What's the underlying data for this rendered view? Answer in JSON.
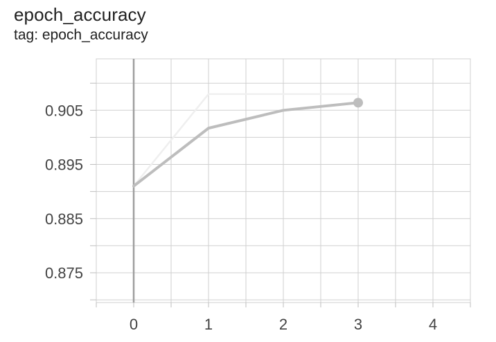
{
  "chart_data": {
    "type": "line",
    "title": "epoch_accuracy",
    "subtitle": "tag: epoch_accuracy",
    "xlim": [
      -0.5,
      4.5
    ],
    "ylim": [
      0.8695,
      0.9145
    ],
    "x_ticks": [
      0,
      1,
      2,
      3,
      4
    ],
    "y_ticks": [
      0.875,
      0.885,
      0.895,
      0.905
    ],
    "y_tick_labels": [
      "0.875",
      "0.885",
      "0.895",
      "0.905"
    ],
    "grid": true,
    "series": [
      {
        "role": "raw",
        "color": "#efefef",
        "x": [
          0,
          1,
          2,
          3
        ],
        "y": [
          0.891,
          0.908,
          0.908,
          0.908
        ]
      },
      {
        "role": "smoothed",
        "color": "#bdbdbd",
        "x": [
          0,
          1,
          2,
          3
        ],
        "y": [
          0.891,
          0.9017,
          0.905,
          0.9064
        ],
        "end_marker": true
      }
    ]
  }
}
